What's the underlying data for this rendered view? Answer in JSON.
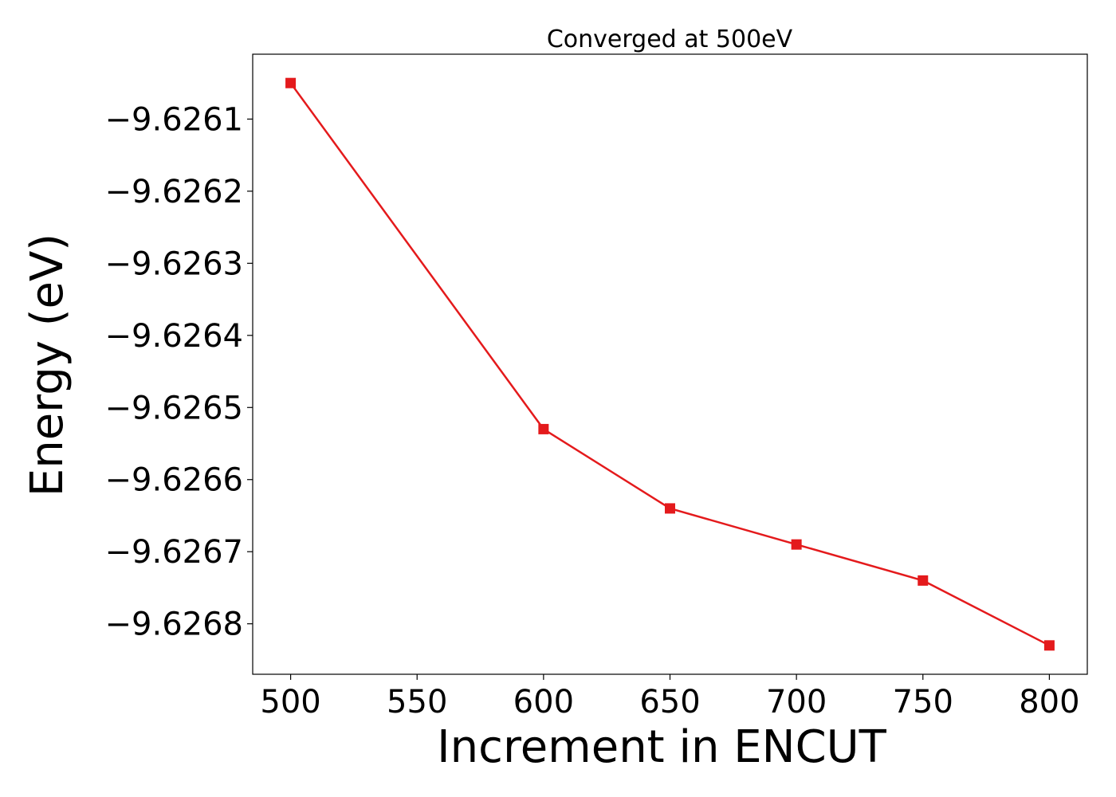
{
  "chart_data": {
    "type": "line",
    "title": "Converged at 500eV",
    "xlabel": "Increment in ENCUT",
    "ylabel": "Energy (eV)",
    "x": [
      500,
      600,
      650,
      700,
      750,
      800
    ],
    "series": [
      {
        "values": [
          -9.62605,
          -9.62653,
          -9.62664,
          -9.62669,
          -9.62674,
          -9.62683
        ],
        "color": "#e41a1c",
        "marker": "square"
      }
    ],
    "x_ticks": [
      500,
      550,
      600,
      650,
      700,
      750,
      800
    ],
    "x_tick_labels": [
      "500",
      "550",
      "600",
      "650",
      "700",
      "750",
      "800"
    ],
    "y_ticks": [
      -9.6261,
      -9.6262,
      -9.6263,
      -9.6264,
      -9.6265,
      -9.6266,
      -9.6267,
      -9.6268
    ],
    "y_tick_labels": [
      "−9.6261",
      "−9.6262",
      "−9.6263",
      "−9.6264",
      "−9.6265",
      "−9.6266",
      "−9.6267",
      "−9.6268"
    ],
    "xlim": [
      485,
      815
    ],
    "ylim": [
      -9.62687,
      -9.62601
    ],
    "grid": false,
    "legend": "none"
  }
}
